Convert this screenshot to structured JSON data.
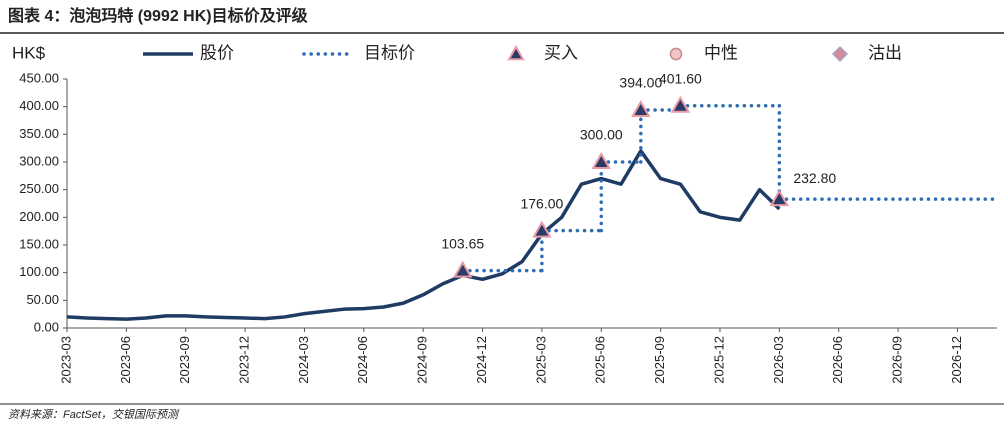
{
  "chart_data": {
    "type": "line",
    "title": "图表 4：泡泡玛特 (9992 HK)目标价及评级",
    "y_unit": "HK$",
    "source": "资料来源：FactSet，交银国际预测",
    "x": [
      "2023-03",
      "2023-04",
      "2023-05",
      "2023-06",
      "2023-07",
      "2023-08",
      "2023-09",
      "2023-10",
      "2023-11",
      "2023-12",
      "2024-01",
      "2024-02",
      "2024-03",
      "2024-04",
      "2024-05",
      "2024-06",
      "2024-07",
      "2024-08",
      "2024-09",
      "2024-10",
      "2024-11",
      "2024-12",
      "2025-01",
      "2025-02",
      "2025-03",
      "2025-04",
      "2025-05",
      "2025-06",
      "2025-07",
      "2025-08",
      "2025-09",
      "2025-10",
      "2025-11",
      "2025-12",
      "2026-01",
      "2026-02",
      "2026-03"
    ],
    "xlim": [
      "2023-03",
      "2027-02"
    ],
    "xticks": [
      "2023-03",
      "2023-06",
      "2023-09",
      "2023-12",
      "2024-03",
      "2024-06",
      "2024-09",
      "2024-12",
      "2025-03",
      "2025-06",
      "2025-09",
      "2025-12",
      "2026-03",
      "2026-06",
      "2026-09",
      "2026-12"
    ],
    "ylim": [
      0,
      450
    ],
    "yticks": [
      {
        "value": 0,
        "label": "0.00"
      },
      {
        "value": 50,
        "label": "50.00"
      },
      {
        "value": 100,
        "label": "100.00"
      },
      {
        "value": 150,
        "label": "150.00"
      },
      {
        "value": 200,
        "label": "200.00"
      },
      {
        "value": 250,
        "label": "250.00"
      },
      {
        "value": 300,
        "label": "300.00"
      },
      {
        "value": 350,
        "label": "350.00"
      },
      {
        "value": 400,
        "label": "400.00"
      },
      {
        "value": 450,
        "label": "450.00"
      }
    ],
    "series": [
      {
        "name": "股价",
        "color": "#1f3b63",
        "values": [
          20,
          18,
          17,
          16,
          18,
          22,
          22,
          20,
          19,
          18,
          17,
          20,
          26,
          30,
          34,
          35,
          38,
          45,
          60,
          80,
          95,
          88,
          98,
          120,
          170,
          200,
          260,
          270,
          260,
          320,
          270,
          260,
          210,
          200,
          195,
          250,
          215
        ]
      }
    ],
    "target": {
      "name": "目标价",
      "color": "#2e6db4"
    },
    "ratings": [
      {
        "name": "买入",
        "marker": "triangle",
        "color": "#2b3a67",
        "edge": "#e89aa5",
        "x": [
          "2024-11",
          "2025-03",
          "2025-06",
          "2025-08",
          "2025-10",
          "2026-03"
        ],
        "values": [
          103.65,
          176,
          300,
          394,
          401.6,
          232.8
        ],
        "value_labels": [
          "103.65",
          "176.00",
          "300.00",
          "394.00",
          "401.60",
          "232.80"
        ]
      },
      {
        "name": "中性",
        "marker": "circle",
        "color": "#f2c4c4",
        "edge": "#c98c8c",
        "x": [],
        "values": []
      },
      {
        "name": "沽出",
        "marker": "diamond",
        "color": "#d98a9a",
        "edge": "#a6a6c8",
        "x": [],
        "values": []
      }
    ]
  }
}
